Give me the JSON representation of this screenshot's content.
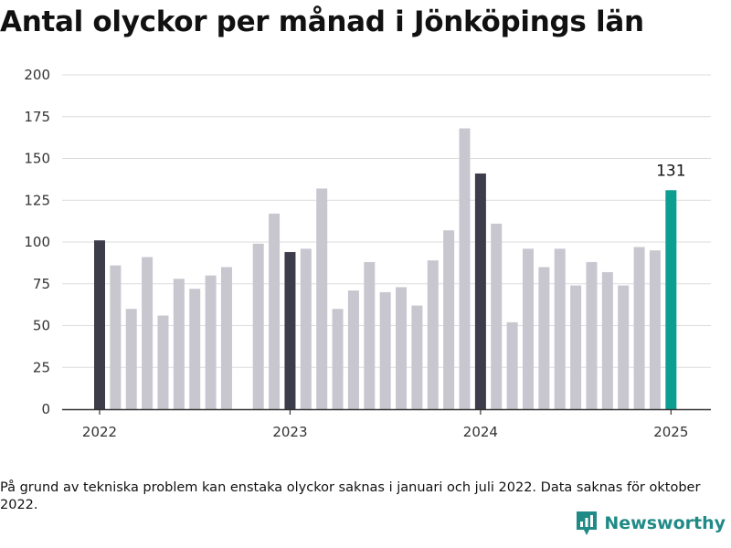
{
  "title": "Antal olyckor per månad i Jönköpings län",
  "footnote": "På grund av tekniska problem kan enstaka olyckor saknas i januari och juli 2022. Data saknas för oktober 2022.",
  "brand": "Newsworthy",
  "colors": {
    "bar": "#c8c7d0",
    "january": "#3d3c4a",
    "latest": "#0d9e92",
    "grid": "#dcdcdc",
    "axis": "#333333",
    "brand": "#1f8a86"
  },
  "chart_data": {
    "type": "bar",
    "title": "Antal olyckor per månad i Jönköpings län",
    "xlabel": "",
    "ylabel": "",
    "ylim": [
      0,
      200
    ],
    "yticks": [
      0,
      25,
      50,
      75,
      100,
      125,
      150,
      175,
      200
    ],
    "xticks": [
      "2022",
      "2023",
      "2024",
      "2025"
    ],
    "grid": true,
    "legend": "none",
    "annotation": "131",
    "categories": [
      "2022-01",
      "2022-02",
      "2022-03",
      "2022-04",
      "2022-05",
      "2022-06",
      "2022-07",
      "2022-08",
      "2022-09",
      "2022-10",
      "2022-11",
      "2022-12",
      "2023-01",
      "2023-02",
      "2023-03",
      "2023-04",
      "2023-05",
      "2023-06",
      "2023-07",
      "2023-08",
      "2023-09",
      "2023-10",
      "2023-11",
      "2023-12",
      "2024-01",
      "2024-02",
      "2024-03",
      "2024-04",
      "2024-05",
      "2024-06",
      "2024-07",
      "2024-08",
      "2024-09",
      "2024-10",
      "2024-11",
      "2024-12",
      "2025-01"
    ],
    "values": [
      101,
      86,
      60,
      91,
      56,
      78,
      72,
      80,
      85,
      null,
      99,
      117,
      94,
      96,
      132,
      60,
      71,
      88,
      70,
      73,
      62,
      89,
      107,
      168,
      141,
      111,
      52,
      96,
      85,
      96,
      74,
      88,
      82,
      74,
      97,
      95,
      131
    ]
  }
}
